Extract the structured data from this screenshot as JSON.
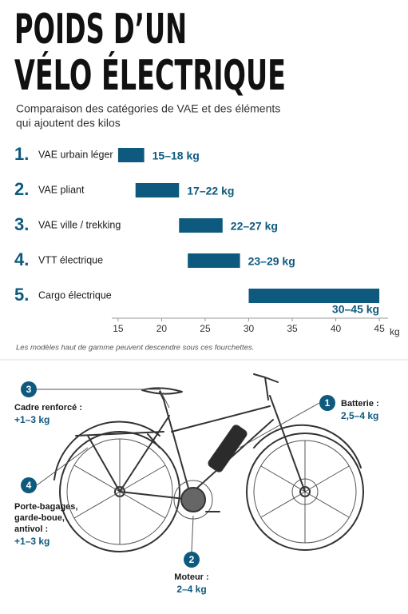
{
  "chart_data": {
    "type": "range-bar",
    "title": [
      "POIDS D’UN",
      "VÉLO ÉLECTRIQUE"
    ],
    "subtitle": [
      "Comparaison des catégories de VAE et des éléments",
      "qui ajoutent des kilos"
    ],
    "ranks": [
      "1.",
      "2.",
      "3.",
      "4.",
      "5."
    ],
    "categories": [
      "VAE urbain léger",
      "VAE pliant",
      "VAE ville / trekking",
      "VTT électrique",
      "Cargo électrique"
    ],
    "low": [
      15,
      17,
      22,
      23,
      30
    ],
    "high": [
      18,
      22,
      27,
      29,
      45
    ],
    "value_labels": [
      "15–18 kg",
      "17–22 kg",
      "22–27 kg",
      "23–29 kg",
      "30–45 kg"
    ],
    "color": "#0e5a7e",
    "xlim": [
      14,
      46
    ],
    "xticks": [
      15,
      20,
      25,
      30,
      35,
      40,
      45
    ],
    "x_unit": "kg",
    "note": "Les modèles haut de gamme peuvent descendre sous ces fourchettes."
  },
  "callouts": [
    {
      "number": 1,
      "label": [
        "Batterie :"
      ],
      "weight": "2,5–4 kg"
    },
    {
      "number": 2,
      "label": [
        "Moteur :"
      ],
      "weight": "2–4 kg"
    },
    {
      "number": 3,
      "label": [
        "Cadre renforcé :"
      ],
      "weight": "+1–3 kg"
    },
    {
      "number": 4,
      "label": [
        "Porte-bagages,",
        "garde-boue,",
        "antivol :"
      ],
      "weight": "+1–3 kg"
    }
  ]
}
